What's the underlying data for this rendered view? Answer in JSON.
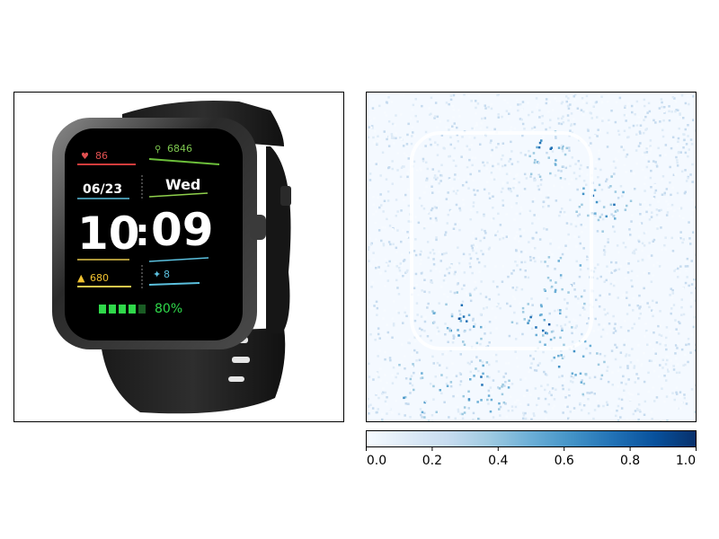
{
  "watch": {
    "heart_rate": "86",
    "steps": "6846",
    "date": "06/23",
    "weekday": "Wed",
    "time_hours": "10",
    "time_minutes": "09",
    "calories": "680",
    "activity": "8",
    "battery": "80%"
  },
  "saliency": {
    "colormap": "Blues",
    "colors": [
      "#f7fbff",
      "#deebf7",
      "#c6dbef",
      "#9ecae1",
      "#6baed6",
      "#4292c6",
      "#2171b5",
      "#08519c",
      "#08306b"
    ]
  },
  "colorbar": {
    "ticks": [
      "0.0",
      "0.2",
      "0.4",
      "0.6",
      "0.8",
      "1.0"
    ],
    "range": [
      0,
      1
    ]
  }
}
